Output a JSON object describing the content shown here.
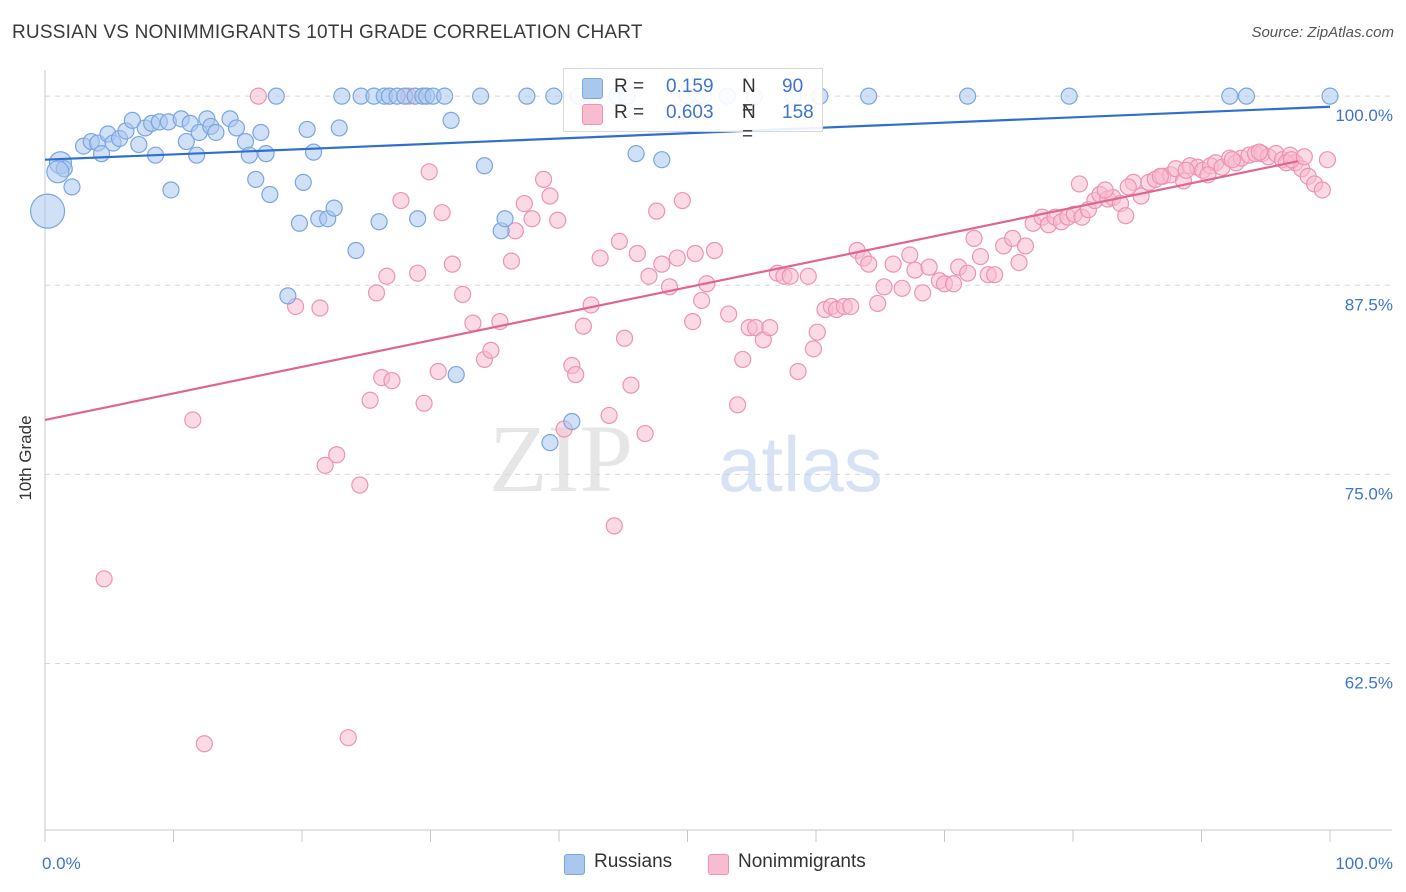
{
  "title": "RUSSIAN VS NONIMMIGRANTS 10TH GRADE CORRELATION CHART",
  "source": "Source: ZipAtlas.com",
  "watermark": {
    "zip": "ZIP",
    "atlas": "atlas"
  },
  "colors": {
    "blue_fill": "#aac7ee",
    "blue_stroke": "#7aa6e0",
    "blue_line": "#2e6fd0",
    "pink_fill": "#f7bcd0",
    "pink_stroke": "#ee93b2",
    "pink_line": "#e0668f",
    "tick_label": "#3d74d0",
    "grid": "#d8d8d8"
  },
  "legend": {
    "rows": [
      {
        "r_label": "R =",
        "r_value": "0.159",
        "n_label": "N =",
        "n_value": "90"
      },
      {
        "r_label": "R =",
        "r_value": "0.603",
        "n_label": "N =",
        "n_value": "158"
      }
    ]
  },
  "bottom_legend": [
    "Russians",
    "Nonimmigrants"
  ],
  "chart_data": {
    "type": "scatter",
    "xlabel": "",
    "ylabel": "10th Grade",
    "x_tick_labels": [
      "0.0%",
      "100.0%"
    ],
    "y_tick_labels": [
      "100.0%",
      "87.5%",
      "75.0%",
      "62.5%"
    ],
    "y_ticks": [
      100,
      87.5,
      75,
      62.5
    ],
    "xlim": [
      0,
      100
    ],
    "ylim": [
      51.5,
      101.2
    ],
    "grid": true,
    "series": [
      {
        "name": "Russians",
        "trend": {
          "x": [
            0,
            100
          ],
          "y": [
            95.8,
            99.3
          ]
        },
        "points": [
          [
            0.2,
            92.4
          ],
          [
            1.2,
            95.6
          ],
          [
            1.5,
            95.2
          ],
          [
            2.1,
            94.0
          ],
          [
            1.0,
            95.0
          ],
          [
            3.0,
            96.7
          ],
          [
            3.6,
            97.0
          ],
          [
            4.1,
            96.9
          ],
          [
            4.4,
            96.2
          ],
          [
            4.9,
            97.5
          ],
          [
            5.3,
            96.9
          ],
          [
            5.8,
            97.2
          ],
          [
            6.3,
            97.7
          ],
          [
            6.8,
            98.4
          ],
          [
            7.3,
            96.8
          ],
          [
            7.8,
            97.9
          ],
          [
            8.3,
            98.2
          ],
          [
            8.6,
            96.1
          ],
          [
            8.9,
            98.3
          ],
          [
            9.6,
            98.3
          ],
          [
            9.8,
            93.8
          ],
          [
            10.6,
            98.5
          ],
          [
            11.0,
            97.0
          ],
          [
            11.3,
            98.2
          ],
          [
            11.8,
            96.1
          ],
          [
            12.0,
            97.6
          ],
          [
            12.6,
            98.5
          ],
          [
            12.9,
            98.0
          ],
          [
            13.3,
            97.6
          ],
          [
            14.4,
            98.5
          ],
          [
            14.9,
            97.9
          ],
          [
            15.6,
            97.0
          ],
          [
            15.9,
            96.1
          ],
          [
            16.4,
            94.5
          ],
          [
            16.8,
            97.6
          ],
          [
            17.2,
            96.2
          ],
          [
            17.5,
            93.5
          ],
          [
            18.0,
            100.0
          ],
          [
            18.9,
            86.8
          ],
          [
            19.8,
            91.6
          ],
          [
            20.1,
            94.3
          ],
          [
            20.4,
            97.8
          ],
          [
            20.9,
            96.3
          ],
          [
            21.3,
            91.9
          ],
          [
            22.0,
            91.9
          ],
          [
            22.5,
            92.6
          ],
          [
            22.9,
            97.9
          ],
          [
            23.1,
            100.0
          ],
          [
            24.2,
            89.8
          ],
          [
            24.6,
            100.0
          ],
          [
            25.6,
            100.0
          ],
          [
            26.0,
            91.7
          ],
          [
            26.4,
            100.0
          ],
          [
            26.8,
            100.0
          ],
          [
            27.4,
            100.0
          ],
          [
            28.0,
            100.0
          ],
          [
            28.8,
            100.0
          ],
          [
            29.0,
            91.9
          ],
          [
            29.4,
            100.0
          ],
          [
            29.7,
            100.0
          ],
          [
            30.2,
            100.0
          ],
          [
            31.1,
            100.0
          ],
          [
            31.6,
            98.4
          ],
          [
            32.0,
            81.6
          ],
          [
            33.9,
            100.0
          ],
          [
            34.2,
            95.4
          ],
          [
            35.5,
            91.1
          ],
          [
            35.8,
            91.9
          ],
          [
            37.5,
            100.0
          ],
          [
            39.3,
            77.1
          ],
          [
            39.6,
            100.0
          ],
          [
            41.0,
            78.5
          ],
          [
            42.7,
            100.0
          ],
          [
            44.5,
            100.0
          ],
          [
            45.3,
            100.0
          ],
          [
            46.0,
            96.2
          ],
          [
            48.0,
            95.8
          ],
          [
            50.0,
            100.0
          ],
          [
            51.2,
            100.0
          ],
          [
            53.1,
            100.0
          ],
          [
            55.2,
            100.0
          ],
          [
            58.2,
            100.0
          ],
          [
            60.3,
            100.0
          ],
          [
            64.1,
            100.0
          ],
          [
            71.8,
            100.0
          ],
          [
            79.7,
            100.0
          ],
          [
            92.2,
            100.0
          ],
          [
            93.5,
            100.0
          ],
          [
            100.0,
            100.0
          ],
          [
            41.5,
            100.0
          ]
        ]
      },
      {
        "name": "Nonimmigrants",
        "trend": {
          "x": [
            0,
            97.5
          ],
          "y": [
            78.6,
            95.7
          ]
        },
        "points": [
          [
            4.6,
            68.1
          ],
          [
            11.5,
            78.6
          ],
          [
            12.4,
            57.2
          ],
          [
            16.6,
            100.0
          ],
          [
            19.5,
            86.1
          ],
          [
            21.4,
            86.0
          ],
          [
            21.8,
            75.6
          ],
          [
            22.7,
            76.3
          ],
          [
            23.6,
            57.6
          ],
          [
            24.5,
            74.3
          ],
          [
            25.3,
            79.9
          ],
          [
            25.8,
            87.0
          ],
          [
            26.2,
            81.4
          ],
          [
            26.6,
            88.1
          ],
          [
            27.0,
            81.2
          ],
          [
            27.7,
            93.1
          ],
          [
            28.3,
            100.0
          ],
          [
            29.0,
            88.3
          ],
          [
            29.5,
            79.7
          ],
          [
            29.9,
            95.0
          ],
          [
            30.6,
            81.8
          ],
          [
            30.9,
            92.3
          ],
          [
            31.7,
            88.9
          ],
          [
            32.5,
            86.9
          ],
          [
            33.3,
            85.0
          ],
          [
            34.2,
            82.6
          ],
          [
            34.7,
            83.2
          ],
          [
            35.4,
            85.1
          ],
          [
            36.3,
            89.1
          ],
          [
            36.6,
            91.1
          ],
          [
            37.3,
            92.9
          ],
          [
            37.9,
            91.9
          ],
          [
            38.8,
            94.5
          ],
          [
            39.3,
            93.4
          ],
          [
            39.9,
            91.8
          ],
          [
            40.4,
            78.0
          ],
          [
            41.0,
            82.2
          ],
          [
            41.3,
            81.6
          ],
          [
            41.9,
            84.8
          ],
          [
            42.5,
            86.2
          ],
          [
            43.2,
            89.3
          ],
          [
            43.9,
            78.9
          ],
          [
            44.3,
            71.6
          ],
          [
            44.7,
            90.4
          ],
          [
            45.1,
            84.0
          ],
          [
            45.6,
            80.9
          ],
          [
            46.1,
            89.6
          ],
          [
            46.7,
            77.7
          ],
          [
            47.0,
            88.1
          ],
          [
            47.6,
            92.4
          ],
          [
            48.0,
            88.9
          ],
          [
            48.6,
            87.4
          ],
          [
            49.2,
            89.3
          ],
          [
            49.6,
            93.1
          ],
          [
            50.4,
            85.1
          ],
          [
            50.6,
            89.6
          ],
          [
            51.1,
            86.5
          ],
          [
            51.5,
            87.6
          ],
          [
            52.1,
            89.8
          ],
          [
            53.2,
            85.6
          ],
          [
            53.9,
            79.6
          ],
          [
            54.3,
            82.6
          ],
          [
            54.8,
            84.7
          ],
          [
            55.3,
            84.7
          ],
          [
            55.9,
            83.9
          ],
          [
            56.4,
            84.7
          ],
          [
            57.0,
            88.3
          ],
          [
            57.5,
            88.1
          ],
          [
            58.0,
            88.1
          ],
          [
            58.6,
            81.8
          ],
          [
            59.4,
            88.1
          ],
          [
            59.8,
            83.3
          ],
          [
            60.1,
            84.4
          ],
          [
            60.7,
            85.9
          ],
          [
            61.2,
            86.1
          ],
          [
            61.6,
            85.9
          ],
          [
            62.2,
            86.1
          ],
          [
            62.7,
            86.1
          ],
          [
            63.2,
            89.8
          ],
          [
            63.7,
            89.3
          ],
          [
            64.1,
            88.9
          ],
          [
            64.8,
            86.3
          ],
          [
            65.3,
            87.4
          ],
          [
            66.0,
            88.9
          ],
          [
            66.7,
            87.3
          ],
          [
            67.3,
            89.5
          ],
          [
            67.7,
            88.5
          ],
          [
            68.3,
            87.0
          ],
          [
            68.8,
            88.7
          ],
          [
            69.6,
            87.8
          ],
          [
            70.0,
            87.6
          ],
          [
            70.7,
            87.6
          ],
          [
            71.1,
            88.7
          ],
          [
            71.8,
            88.3
          ],
          [
            72.3,
            90.6
          ],
          [
            72.8,
            89.4
          ],
          [
            73.4,
            88.2
          ],
          [
            73.9,
            88.2
          ],
          [
            74.6,
            90.1
          ],
          [
            75.3,
            90.6
          ],
          [
            75.8,
            89.0
          ],
          [
            76.3,
            90.1
          ],
          [
            76.9,
            91.6
          ],
          [
            77.6,
            92.0
          ],
          [
            78.1,
            91.5
          ],
          [
            78.6,
            92.0
          ],
          [
            79.1,
            91.7
          ],
          [
            79.6,
            92.0
          ],
          [
            80.1,
            92.2
          ],
          [
            80.7,
            92.0
          ],
          [
            81.2,
            92.5
          ],
          [
            81.7,
            93.1
          ],
          [
            82.1,
            93.5
          ],
          [
            82.7,
            93.2
          ],
          [
            83.1,
            93.3
          ],
          [
            83.7,
            92.9
          ],
          [
            84.1,
            92.1
          ],
          [
            84.7,
            94.3
          ],
          [
            85.3,
            93.4
          ],
          [
            85.9,
            94.3
          ],
          [
            86.4,
            94.5
          ],
          [
            87.0,
            94.7
          ],
          [
            87.6,
            94.8
          ],
          [
            88.0,
            95.2
          ],
          [
            88.6,
            94.4
          ],
          [
            89.1,
            95.4
          ],
          [
            89.7,
            95.3
          ],
          [
            90.1,
            95.1
          ],
          [
            90.7,
            95.4
          ],
          [
            91.1,
            95.6
          ],
          [
            91.6,
            95.3
          ],
          [
            92.2,
            95.9
          ],
          [
            92.7,
            95.6
          ],
          [
            93.1,
            95.9
          ],
          [
            93.7,
            96.1
          ],
          [
            94.2,
            96.2
          ],
          [
            94.7,
            96.2
          ],
          [
            95.2,
            96.0
          ],
          [
            95.8,
            96.2
          ],
          [
            96.3,
            95.8
          ],
          [
            96.9,
            96.1
          ],
          [
            97.3,
            95.6
          ],
          [
            97.8,
            95.2
          ],
          [
            98.3,
            94.7
          ],
          [
            98.8,
            94.2
          ],
          [
            99.4,
            93.8
          ],
          [
            99.8,
            95.8
          ],
          [
            96.6,
            95.6
          ],
          [
            97.0,
            95.8
          ],
          [
            98.0,
            96.0
          ],
          [
            80.5,
            94.2
          ],
          [
            82.5,
            93.8
          ],
          [
            84.3,
            94.0
          ],
          [
            86.8,
            94.7
          ],
          [
            88.8,
            95.1
          ],
          [
            90.5,
            94.8
          ],
          [
            92.4,
            95.8
          ],
          [
            94.5,
            96.3
          ]
        ]
      }
    ]
  }
}
